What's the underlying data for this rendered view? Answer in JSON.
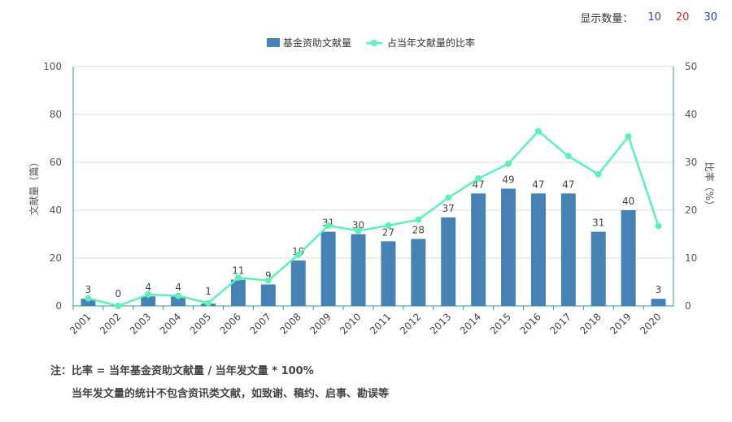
{
  "display_count": {
    "label": "显示数量：",
    "options": [
      {
        "text": "10",
        "color": "#1f3fd8"
      },
      {
        "text": "20",
        "color": "#d81f1f"
      },
      {
        "text": "30",
        "color": "#1f3fd8"
      }
    ]
  },
  "notes": {
    "line1": "注：比率 = 当年基金资助文献量 / 当年发文量 * 100%",
    "line2": "当年发文量的统计不包含资讯类文献，如致谢、稿约、启事、勘误等"
  },
  "chart_data": {
    "type": "bar",
    "categories": [
      "2001",
      "2002",
      "2003",
      "2004",
      "2005",
      "2006",
      "2007",
      "2008",
      "2009",
      "2010",
      "2011",
      "2012",
      "2013",
      "2014",
      "2015",
      "2016",
      "2017",
      "2018",
      "2019",
      "2020"
    ],
    "series": [
      {
        "name": "基金资助文献量",
        "type": "bar",
        "axis": "left",
        "color": "#4682b4",
        "values": [
          3,
          0,
          4,
          4,
          1,
          11,
          9,
          19,
          31,
          30,
          27,
          28,
          37,
          47,
          49,
          47,
          47,
          31,
          40,
          3
        ]
      },
      {
        "name": "占当年文献量的比率",
        "type": "line",
        "axis": "right",
        "color": "#5ef0b8",
        "values": [
          1.6,
          0,
          2.4,
          2.1,
          0.6,
          5.9,
          5.3,
          10.7,
          16.8,
          15.7,
          16.8,
          18.0,
          22.6,
          26.6,
          29.7,
          36.5,
          31.3,
          27.5,
          35.4,
          16.7
        ]
      }
    ],
    "ylabel": "文献量（篇）",
    "y2label": "比率（%）",
    "ylim": [
      0,
      100
    ],
    "y2lim": [
      0,
      50
    ],
    "yticks": [
      0,
      20,
      40,
      60,
      80,
      100
    ],
    "y2ticks": [
      0,
      10,
      20,
      30,
      40,
      50
    ],
    "grid": true,
    "legend_position": "top-center"
  }
}
